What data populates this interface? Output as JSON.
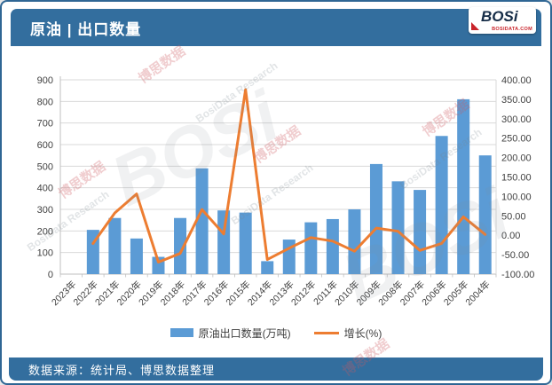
{
  "header": {
    "title": "原油 | 出口数量",
    "logo": {
      "text": "BOSi",
      "subtext": "BOSIDATA.COM"
    }
  },
  "footer": {
    "source": "数据来源：统计局、博思数据整理"
  },
  "legend": [
    {
      "label": "原油出口数量(万吨)",
      "type": "bar"
    },
    {
      "label": "增长(%)",
      "type": "line"
    }
  ],
  "watermark": {
    "cn": "博思数据",
    "en": "BosiData Research",
    "logo": "BOSi"
  },
  "colors": {
    "bar": "#5b9bd5",
    "line": "#ed7d31",
    "band": "#336e9e",
    "grid": "#d9d9d9",
    "axis": "#bfbfbf",
    "tick_text": "#404040"
  },
  "chart_data": {
    "type": "bar+line combo",
    "title": "原油 | 出口数量",
    "categories": [
      "2023年",
      "2022年",
      "2021年",
      "2020年",
      "2019年",
      "2018年",
      "2017年",
      "2016年",
      "2015年",
      "2014年",
      "2013年",
      "2012年",
      "2011年",
      "2010年",
      "2009年",
      "2008年",
      "2007年",
      "2006年",
      "2005年",
      "2004年"
    ],
    "series": [
      {
        "name": "原油出口数量(万吨)",
        "type": "bar",
        "axis": "left",
        "values": [
          null,
          205,
          260,
          165,
          80,
          260,
          490,
          295,
          285,
          60,
          160,
          240,
          255,
          300,
          510,
          430,
          390,
          640,
          810,
          550
        ]
      },
      {
        "name": "增长(%)",
        "type": "line",
        "axis": "right",
        "values": [
          null,
          -21.2,
          57.6,
          106.3,
          -69.2,
          -46.9,
          66.1,
          3.5,
          375.0,
          -62.5,
          -33.3,
          -5.9,
          -15.0,
          -41.2,
          18.6,
          10.3,
          -39.1,
          -21.0,
          47.3,
          2.0
        ]
      }
    ],
    "left_axis": {
      "min": 0,
      "max": 900,
      "step": 100,
      "ticks": [
        "900",
        "800",
        "700",
        "600",
        "500",
        "400",
        "300",
        "200",
        "100",
        "0"
      ]
    },
    "right_axis": {
      "min": -100,
      "max": 400,
      "step": 50,
      "ticks": [
        "400.00",
        "350.00",
        "300.00",
        "250.00",
        "200.00",
        "150.00",
        "100.00",
        "50.00",
        "0.00",
        "-50.00",
        "-100.00"
      ]
    },
    "grid": "horizontal major gridlines on",
    "legend_position": "bottom center",
    "x_label_rotation": -45
  }
}
